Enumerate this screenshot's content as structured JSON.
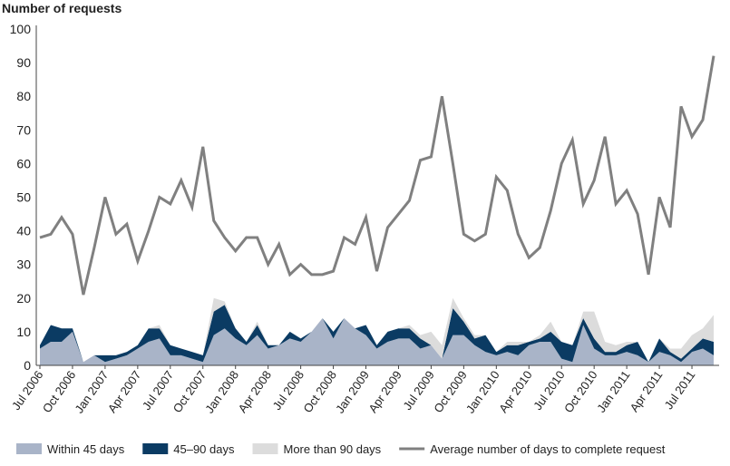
{
  "chart_data": {
    "type": "stacked-area-line",
    "y_axis_label": "Number of requests",
    "categories": [
      "Jul 2006",
      null,
      null,
      "Oct 2006",
      null,
      null,
      "Jan 2007",
      null,
      null,
      "Apr 2007",
      null,
      null,
      "Jul 2007",
      null,
      null,
      "Oct 2007",
      null,
      null,
      "Jan 2008",
      null,
      null,
      "Apr 2008",
      null,
      null,
      "Jul 2008",
      null,
      null,
      "Oct 2008",
      null,
      null,
      "Jan 2009",
      null,
      null,
      "Apr 2009",
      null,
      null,
      "Jul 2009",
      null,
      null,
      "Oct 2009",
      null,
      null,
      "Jan 2010",
      null,
      null,
      "Apr 2010",
      null,
      null,
      "Jul 2010",
      null,
      null,
      "Oct 2010",
      null,
      null,
      "Jan 2011",
      null,
      null,
      "Apr 2011",
      null,
      null,
      "Jul 2011",
      null,
      null
    ],
    "series": [
      {
        "name": "Within 45 days",
        "color": "#a9b4c8",
        "kind": "area",
        "values": [
          5,
          7,
          7,
          10,
          1,
          3,
          1,
          2,
          3,
          5,
          7,
          8,
          3,
          3,
          2,
          1,
          9,
          11,
          8,
          6,
          9,
          5,
          6,
          8,
          7,
          10,
          14,
          8,
          14,
          11,
          9,
          5,
          7,
          8,
          8,
          5,
          6,
          2,
          9,
          9,
          6,
          4,
          3,
          4,
          3,
          6,
          7,
          7,
          2,
          1,
          12,
          5,
          3,
          3,
          4,
          3,
          1,
          4,
          3,
          1,
          4,
          5,
          3
        ]
      },
      {
        "name": "45–90 days",
        "color": "#0b3b63",
        "kind": "area",
        "values": [
          1,
          5,
          4,
          1,
          0,
          0,
          2,
          1,
          1,
          1,
          4,
          3,
          3,
          2,
          2,
          2,
          7,
          7,
          3,
          1,
          3,
          1,
          0,
          2,
          1,
          0,
          0,
          2,
          0,
          0,
          3,
          1,
          3,
          3,
          3,
          3,
          0,
          0,
          8,
          4,
          2,
          5,
          1,
          2,
          3,
          1,
          1,
          3,
          5,
          5,
          2,
          3,
          1,
          1,
          2,
          4,
          0,
          4,
          1,
          1,
          1,
          3,
          4
        ]
      },
      {
        "name": "More than 90 days",
        "color": "#dcdcdc",
        "kind": "area",
        "values": [
          0,
          0,
          0,
          0,
          0,
          0,
          0,
          0,
          0,
          0,
          0,
          1,
          0,
          0,
          0,
          0,
          4,
          1,
          0,
          0,
          1,
          0,
          0,
          0,
          0,
          0,
          0,
          0,
          0,
          0,
          0,
          0,
          0,
          0,
          1,
          1,
          4,
          4,
          3,
          1,
          1,
          0,
          0,
          1,
          1,
          0,
          1,
          3,
          0,
          0,
          2,
          8,
          3,
          2,
          1,
          0,
          0,
          0,
          1,
          3,
          4,
          3,
          8
        ]
      },
      {
        "name": "Average number of days to complete request",
        "color": "#808080",
        "kind": "line",
        "values": [
          38,
          39,
          44,
          39,
          21,
          35,
          50,
          39,
          42,
          31,
          40,
          50,
          48,
          55,
          47,
          65,
          43,
          38,
          34,
          38,
          38,
          30,
          36,
          27,
          30,
          27,
          27,
          28,
          38,
          36,
          44,
          28,
          41,
          45,
          49,
          61,
          62,
          80,
          60,
          39,
          37,
          39,
          56,
          52,
          39,
          32,
          35,
          46,
          60,
          67,
          48,
          55,
          68,
          48,
          52,
          45,
          27,
          50,
          41,
          77,
          68,
          73,
          92
        ]
      }
    ],
    "ylim": [
      0,
      100
    ],
    "yticks": [
      0,
      10,
      20,
      30,
      40,
      50,
      60,
      70,
      80,
      90,
      100
    ],
    "grid": false
  }
}
